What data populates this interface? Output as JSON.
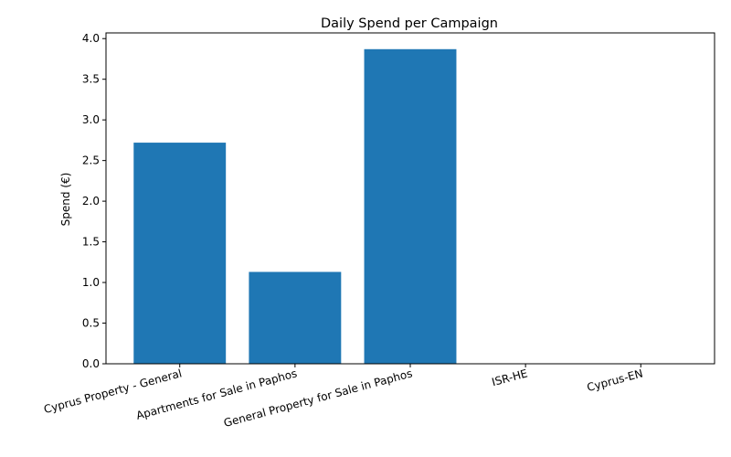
{
  "chart_data": {
    "type": "bar",
    "title": "Daily Spend per Campaign",
    "xlabel": "",
    "ylabel": "Spend (€)",
    "categories": [
      "Cyprus Property - General",
      "Apartments for Sale in Paphos",
      "General Property for Sale in Paphos",
      "ISR-HE",
      "Cyprus-EN"
    ],
    "values": [
      2.72,
      1.13,
      3.87,
      0,
      0
    ],
    "ylim": [
      0,
      4.07
    ],
    "yticks": [
      0.0,
      0.5,
      1.0,
      1.5,
      2.0,
      2.5,
      3.0,
      3.5,
      4.0
    ],
    "ytick_labels": [
      "0.0",
      "0.5",
      "1.0",
      "1.5",
      "2.0",
      "2.5",
      "3.0",
      "3.5",
      "4.0"
    ],
    "bar_color": "#1f77b4",
    "grid": false,
    "legend": "none"
  }
}
